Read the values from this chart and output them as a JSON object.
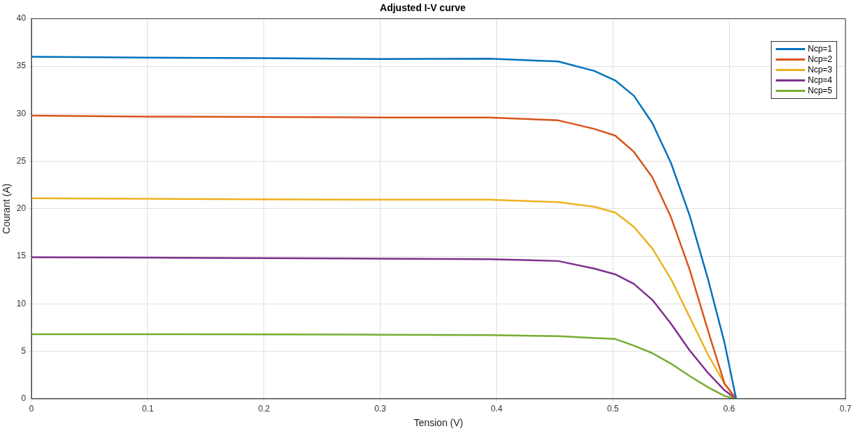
{
  "chart_data": {
    "type": "line",
    "title": "Adjusted I-V curve",
    "xlabel": "Tension (V)",
    "ylabel": "Courant (A)",
    "x": [
      0,
      0.1,
      0.2,
      0.3,
      0.393,
      0.453,
      0.484,
      0.502,
      0.518,
      0.534,
      0.55,
      0.566,
      0.582,
      0.596,
      0.606
    ],
    "series": [
      {
        "name": "Ncp=1",
        "color": "#0072bd",
        "values": [
          36.0,
          35.9,
          35.85,
          35.75,
          35.8,
          35.5,
          34.5,
          33.5,
          31.9,
          29.0,
          24.8,
          19.3,
          12.5,
          5.9,
          0
        ]
      },
      {
        "name": "Ncp=2",
        "color": "#d95319",
        "values": [
          29.8,
          29.7,
          29.65,
          29.6,
          29.6,
          29.3,
          28.4,
          27.7,
          26.0,
          23.3,
          19.1,
          13.6,
          7.1,
          1.6,
          0
        ]
      },
      {
        "name": "Ncp=3",
        "color": "#edb120",
        "values": [
          21.1,
          21.05,
          21.0,
          20.95,
          20.95,
          20.7,
          20.2,
          19.6,
          18.1,
          15.8,
          12.6,
          8.6,
          4.6,
          1.6,
          0
        ]
      },
      {
        "name": "Ncp=4",
        "color": "#7e2f8e",
        "values": [
          14.9,
          14.85,
          14.8,
          14.75,
          14.7,
          14.5,
          13.7,
          13.1,
          12.1,
          10.4,
          7.9,
          5.1,
          2.7,
          0.9,
          0
        ]
      },
      {
        "name": "Ncp=5",
        "color": "#77ac30",
        "values": [
          6.8,
          6.8,
          6.78,
          6.75,
          6.7,
          6.6,
          6.4,
          6.3,
          5.6,
          4.8,
          3.7,
          2.4,
          1.2,
          0.3,
          0
        ]
      }
    ],
    "xlim": [
      0,
      0.7
    ],
    "xticks": [
      0,
      0.1,
      0.2,
      0.3,
      0.4,
      0.5,
      0.6,
      0.7
    ],
    "ylim": [
      0,
      40
    ],
    "yticks": [
      0,
      5,
      10,
      15,
      20,
      25,
      30,
      35,
      40
    ],
    "grid": true,
    "legend": "top right",
    "marker": "none",
    "line_style": "solid"
  }
}
